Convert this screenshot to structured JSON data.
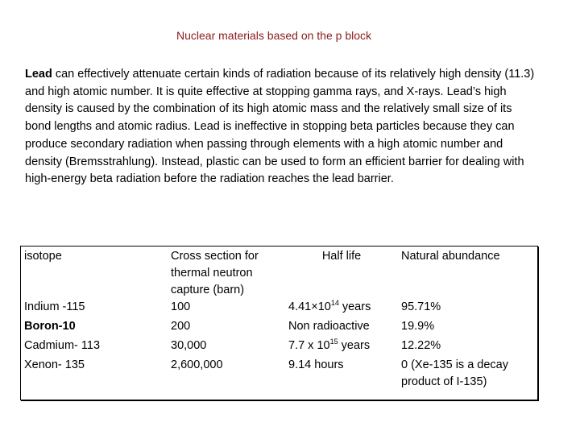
{
  "title": "Nuclear materials based on the p block",
  "paragraph": {
    "bold_lead": "Lead",
    "text": " can effectively attenuate certain kinds of radiation because of its relatively high density (11.3) and high atomic number. It is quite effective at stopping gamma rays, and X-rays. Lead’s high density is caused by the combination of its high atomic mass and the relatively small size of its bond lengths and atomic radius. Lead is ineffective in stopping beta particles because they can produce secondary radiation when passing through elements with a high atomic number and density (Bremsstrahlung). Instead, plastic can be used to form an efficient barrier for dealing with high-energy beta radiation before the radiation reaches the lead barrier."
  },
  "table": {
    "headers": {
      "isotope": "isotope",
      "cross_section": "Cross section for thermal neutron capture (barn)",
      "half_life": "Half life",
      "abundance": "Natural abundance"
    },
    "rows": [
      {
        "isotope": "Indium -115",
        "cross_section": "100",
        "half_life_base": "4.41×10",
        "half_life_exp": "14",
        "half_life_unit": " years",
        "abundance": "95.71%"
      },
      {
        "isotope": "Boron-10",
        "cross_section": "200",
        "half_life_text": "Non radioactive",
        "abundance": "19.9%"
      },
      {
        "isotope": "Cadmium- 113",
        "cross_section": "30,000",
        "half_life_base": "7.7 x 10",
        "half_life_exp": "15",
        "half_life_unit": " years",
        "abundance": "12.22%"
      },
      {
        "isotope": "Xenon- 135",
        "cross_section": "2,600,000",
        "half_life_text": "9.14 hours",
        "abundance": "0  (Xe-135 is a decay product of I-135)"
      }
    ]
  }
}
